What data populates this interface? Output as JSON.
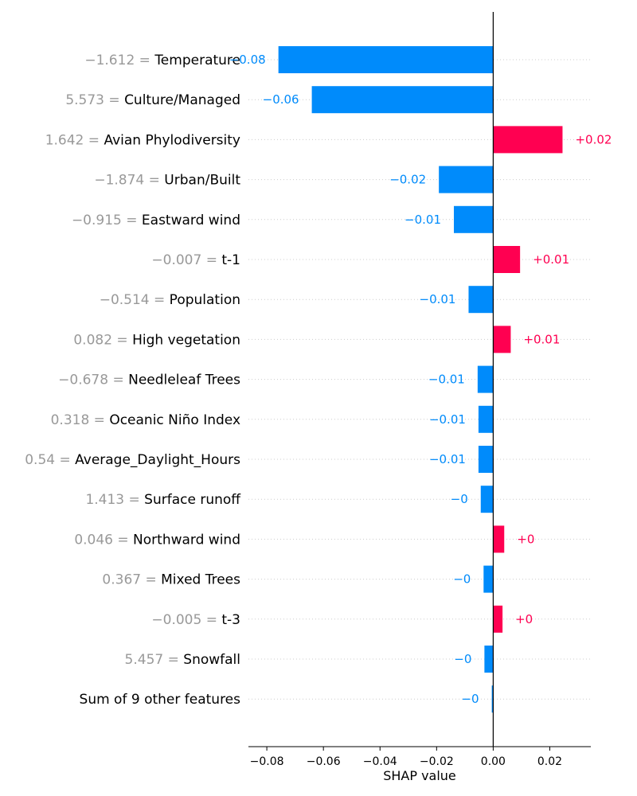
{
  "chart_data": {
    "type": "bar",
    "orientation": "horizontal",
    "xlabel": "SHAP value",
    "xlim": [
      -0.0865,
      0.0345
    ],
    "xticks": [
      -0.08,
      -0.06,
      -0.04,
      -0.02,
      0.0,
      0.02
    ],
    "xtick_labels": [
      "−0.08",
      "−0.06",
      "−0.04",
      "−0.02",
      "0.00",
      "0.02"
    ],
    "grid": "dotted horizontal lines per row",
    "colors": {
      "positive": "#ff0051",
      "negative": "#008bfb",
      "feature_value": "#999999",
      "text": "#000000"
    },
    "features": [
      {
        "value_label": "−1.612 =",
        "name": "Temperature",
        "shap": -0.0759,
        "label": "−0.08"
      },
      {
        "value_label": "5.573 =",
        "name": "Culture/Managed",
        "shap": -0.0641,
        "label": "−0.06"
      },
      {
        "value_label": "1.642 =",
        "name": "Avian Phylodiversity",
        "shap": 0.0245,
        "label": "+0.02"
      },
      {
        "value_label": "−1.874 =",
        "name": "Urban/Built",
        "shap": -0.0192,
        "label": "−0.02"
      },
      {
        "value_label": "−0.915 =",
        "name": "Eastward wind",
        "shap": -0.0139,
        "label": "−0.01"
      },
      {
        "value_label": "−0.007 =",
        "name": "t-1",
        "shap": 0.0095,
        "label": "+0.01"
      },
      {
        "value_label": "−0.514 =",
        "name": "Population",
        "shap": -0.0087,
        "label": "−0.01"
      },
      {
        "value_label": "0.082 =",
        "name": "High vegetation",
        "shap": 0.0062,
        "label": "+0.01"
      },
      {
        "value_label": "−0.678 =",
        "name": "Needleleaf Trees",
        "shap": -0.0055,
        "label": "−0.01"
      },
      {
        "value_label": "0.318 =",
        "name": "Oceanic Niño Index",
        "shap": -0.0052,
        "label": "−0.01"
      },
      {
        "value_label": "0.54 =",
        "name": "Average_Daylight_Hours",
        "shap": -0.0052,
        "label": "−0.01"
      },
      {
        "value_label": "1.413 =",
        "name": "Surface runoff",
        "shap": -0.0044,
        "label": "−0"
      },
      {
        "value_label": "0.046 =",
        "name": "Northward wind",
        "shap": 0.0039,
        "label": "+0"
      },
      {
        "value_label": "0.367 =",
        "name": "Mixed Trees",
        "shap": -0.0034,
        "label": "−0"
      },
      {
        "value_label": "−0.005 =",
        "name": "t-3",
        "shap": 0.0033,
        "label": "+0"
      },
      {
        "value_label": "5.457 =",
        "name": "Snowfall",
        "shap": -0.0031,
        "label": "−0"
      },
      {
        "value_label": "",
        "name": "Sum of 9 other features",
        "shap": -0.0005,
        "label": "−0"
      }
    ]
  }
}
